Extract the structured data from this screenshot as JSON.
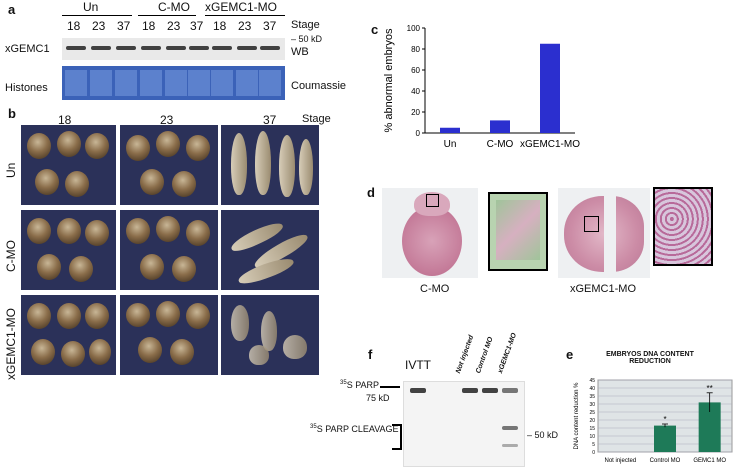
{
  "panel_a": {
    "letter": "a",
    "groups": [
      "Un",
      "C-MO",
      "xGEMC1-MO"
    ],
    "stages": [
      "18",
      "23",
      "37",
      "18",
      "23",
      "37",
      "18",
      "23",
      "37"
    ],
    "stage_label": "Stage",
    "marker": "50 kD",
    "row1_label": "xGEMC1",
    "row1_method": "WB",
    "row2_label": "Histones",
    "row2_method": "Coumassie"
  },
  "panel_b": {
    "letter": "b",
    "stages": [
      "18",
      "23",
      "37"
    ],
    "stage_label": "Stage",
    "rows": [
      "Un",
      "C-MO",
      "xGEMC1-MO"
    ]
  },
  "panel_c": {
    "letter": "c",
    "ylabel": "% abnormal embryos"
  },
  "chart_data": [
    {
      "type": "bar",
      "categories": [
        "Un",
        "C-MO",
        "xGEMC1-MO"
      ],
      "values": [
        5,
        12,
        85
      ],
      "ylabel": "% abnormal embryos",
      "ylim": [
        0,
        100
      ],
      "yticks": [
        0,
        20,
        40,
        60,
        80,
        100
      ],
      "color": "#2b2fcf"
    },
    {
      "type": "bar",
      "title": "EMBRYOS DNA CONTENT REDUCTION",
      "categories": [
        "Not injected",
        "Control MO",
        "GEMC1 MO"
      ],
      "values": [
        0,
        16.5,
        31
      ],
      "errors": [
        0,
        1,
        6
      ],
      "significance": [
        "",
        "*",
        "**"
      ],
      "ylabel": "DNA content reduction %",
      "ylim": [
        0,
        45
      ],
      "yticks": [
        0,
        5,
        10,
        15,
        20,
        25,
        30,
        35,
        40,
        45
      ],
      "grid": true,
      "color": "#1e7a58"
    }
  ],
  "panel_d": {
    "letter": "d",
    "left_label": "C-MO",
    "right_label": "xGEMC1-MO"
  },
  "panel_f": {
    "letter": "f",
    "ivtt": "IVTT",
    "lanes": [
      "Not injected",
      "Control MO",
      "xGEMC1-MO"
    ],
    "parp_sup": "35",
    "parp": "S PARP",
    "marker75": "75 kD",
    "cleavage_sup": "35",
    "cleavage": "S PARP CLEAVAGE",
    "marker50": "50 kD"
  },
  "panel_e": {
    "letter": "e",
    "title_line1": "EMBRYOS DNA CONTENT",
    "title_line2": "REDUCTION",
    "ylabel": "DNA content reduction %"
  }
}
